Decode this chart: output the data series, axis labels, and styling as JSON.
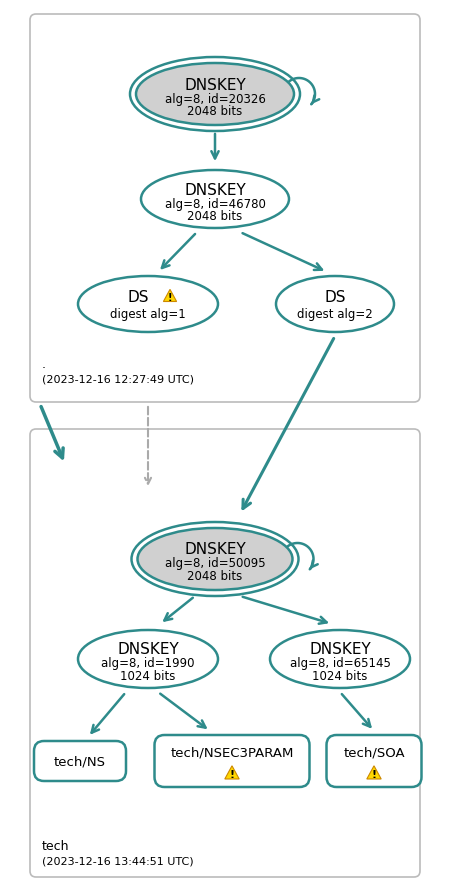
{
  "teal": "#2E8B8B",
  "gray_fill": "#D0D0D0",
  "white_fill": "#FFFFFF",
  "bg_color": "#FFFFFF",
  "box1_label": ".",
  "box1_timestamp": "(2023-12-16 12:27:49 UTC)",
  "box2_label": "tech",
  "box2_timestamp": "(2023-12-16 13:44:51 UTC)",
  "ksk1_line1": "DNSKEY",
  "ksk1_line2": "alg=8, id=20326",
  "ksk1_line3": "2048 bits",
  "zsk1_line1": "DNSKEY",
  "zsk1_line2": "alg=8, id=46780",
  "zsk1_line3": "2048 bits",
  "ds1_line1": "DS",
  "ds1_line2": "digest alg=1",
  "ds2_line1": "DS",
  "ds2_line2": "digest alg=2",
  "ksk2_line1": "DNSKEY",
  "ksk2_line2": "alg=8, id=50095",
  "ksk2_line3": "2048 bits",
  "zsk2a_line1": "DNSKEY",
  "zsk2a_line2": "alg=8, id=1990",
  "zsk2a_line3": "1024 bits",
  "zsk2b_line1": "DNSKEY",
  "zsk2b_line2": "alg=8, id=65145",
  "zsk2b_line3": "1024 bits",
  "ns_label": "tech/NS",
  "nsec_label": "tech/NSEC3PARAM",
  "soa_label": "tech/SOA"
}
